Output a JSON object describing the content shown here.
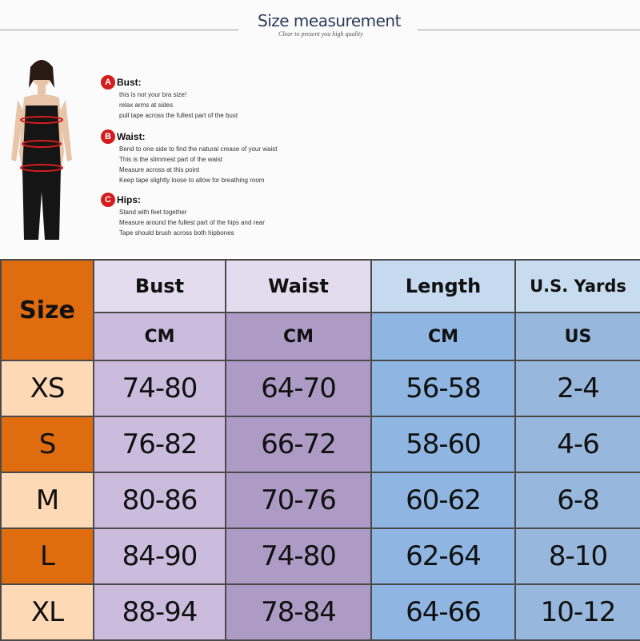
{
  "header": {
    "title": "Size measurement",
    "subtitle": "Clear to present you high quality"
  },
  "guide": [
    {
      "letter": "A",
      "label": "Bust:",
      "lines": [
        "this is not your bra size!",
        "relax arms at sides",
        "pull tape across the fullest part of the bust"
      ]
    },
    {
      "letter": "B",
      "label": "Waist:",
      "lines": [
        "Bend  to one side to find the natural crease of your waist",
        "This is the slimmest part of the waist",
        "Measure across at this point",
        "Keep tape slightly loose to allow for breathing room"
      ]
    },
    {
      "letter": "C",
      "label": "Hips:",
      "lines": [
        "Stand with feet together",
        "Measure around the fullest part of the hips and rear",
        "Tape should brush across both hipbones"
      ]
    }
  ],
  "table": {
    "size_header": "Size",
    "columns": [
      {
        "name": "Bust",
        "unit": "CM"
      },
      {
        "name": "Waist",
        "unit": "CM"
      },
      {
        "name": "Length",
        "unit": "CM"
      },
      {
        "name": "U.S. Yards",
        "unit": "US"
      }
    ],
    "rows": [
      {
        "size": "XS",
        "values": [
          "74-80",
          "64-70",
          "56-58",
          "2-4"
        ]
      },
      {
        "size": "S",
        "values": [
          "76-82",
          "66-72",
          "58-60",
          "4-6"
        ]
      },
      {
        "size": "M",
        "values": [
          "80-86",
          "70-76",
          "60-62",
          "6-8"
        ]
      },
      {
        "size": "L",
        "values": [
          "84-90",
          "74-80",
          "62-64",
          "8-10"
        ]
      },
      {
        "size": "XL",
        "values": [
          "88-94",
          "78-84",
          "64-66",
          "10-12"
        ]
      }
    ]
  },
  "colors": {
    "orange": "#e06c10",
    "peach": "#fdd9b5",
    "bust_head": "#e2dcee",
    "bust": "#cbbcde",
    "waist": "#ad9bc6",
    "length_head": "#c6daf0",
    "length": "#8fb5e2",
    "us": "#98b7dc"
  }
}
